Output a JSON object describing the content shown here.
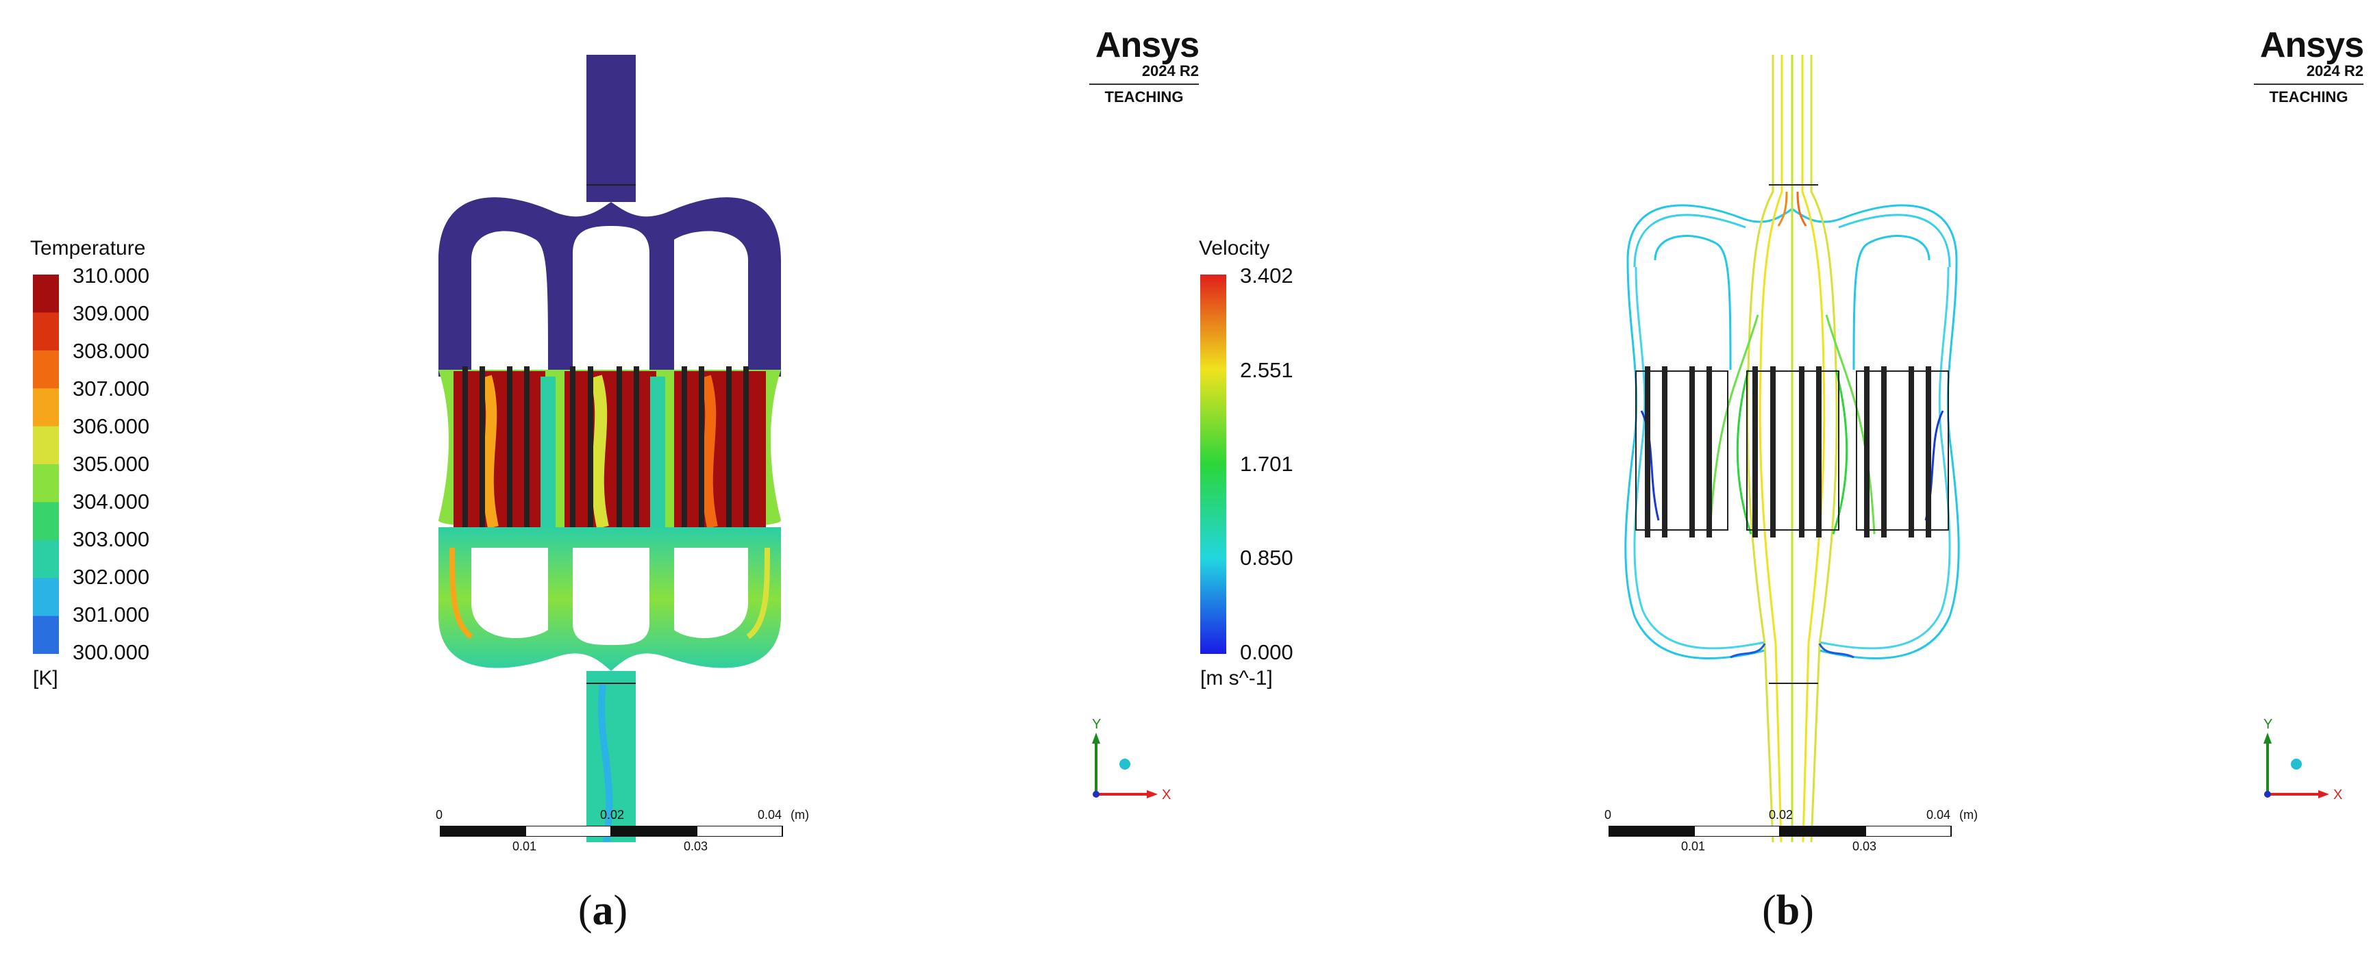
{
  "panels": [
    {
      "id": "a",
      "caption_letter": "a",
      "legend": {
        "title": "Temperature",
        "unit": "[K]",
        "labels": [
          "310.000",
          "309.000",
          "308.000",
          "307.000",
          "306.000",
          "305.000",
          "304.000",
          "303.000",
          "302.000",
          "301.000",
          "300.000"
        ],
        "colors": [
          "#a50e0e",
          "#d9340f",
          "#f06a12",
          "#f5a61a",
          "#d8e03a",
          "#8ae03e",
          "#38d36a",
          "#2ccfa4",
          "#2ab3e4",
          "#2a6fe0",
          "#3b2e86"
        ]
      },
      "logo": {
        "brand": "Ansys",
        "version": "2024 R2",
        "edition": "TEACHING"
      },
      "scale": {
        "labels_top": [
          "0",
          "0.02",
          "0.04"
        ],
        "unit": "(m)",
        "labels_bottom": [
          "0.01",
          "0.03"
        ]
      },
      "axes": {
        "x": "X",
        "y": "Y"
      }
    },
    {
      "id": "b",
      "caption_letter": "b",
      "legend": {
        "title": "Velocity",
        "unit": "[m s^-1]",
        "labels": [
          "3.402",
          "2.551",
          "1.701",
          "0.850",
          "0.000"
        ],
        "colors": [
          "#e0201a",
          "#f0e31e",
          "#2bd63a",
          "#22d6e0",
          "#1a1ae6"
        ]
      },
      "logo": {
        "brand": "Ansys",
        "version": "2024 R2",
        "edition": "TEACHING"
      },
      "scale": {
        "labels_top": [
          "0",
          "0.02",
          "0.04"
        ],
        "unit": "(m)",
        "labels_bottom": [
          "0.01",
          "0.03"
        ]
      },
      "axes": {
        "x": "X",
        "y": "Y"
      }
    }
  ]
}
